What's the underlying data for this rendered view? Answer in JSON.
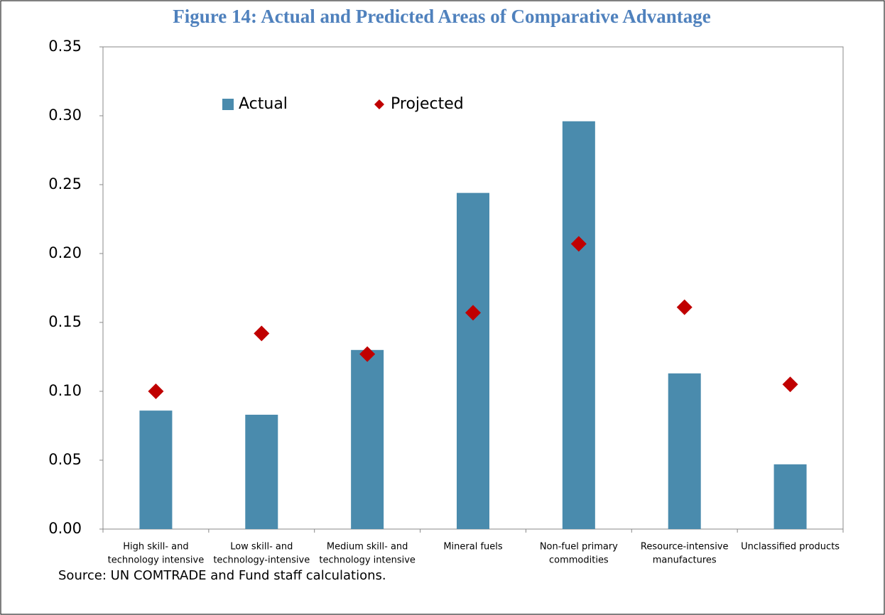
{
  "chart_data": {
    "type": "bar",
    "title": "Figure 14: Actual and Predicted Areas of Comparative Advantage",
    "categories": [
      [
        "High skill- and",
        "technology intensive"
      ],
      [
        "Low skill- and",
        "technology-intensive"
      ],
      [
        "Medium skill- and",
        "technology intensive"
      ],
      [
        "Mineral fuels"
      ],
      [
        "Non-fuel primary",
        "commodities"
      ],
      [
        "Resource-intensive",
        "manufactures"
      ],
      [
        "Unclassified products"
      ]
    ],
    "series": [
      {
        "name": "Actual",
        "type": "bar",
        "color": "#4a8bad",
        "values": [
          0.086,
          0.083,
          0.13,
          0.244,
          0.296,
          0.113,
          0.047
        ]
      },
      {
        "name": "Projected",
        "type": "scatter",
        "marker": "diamond",
        "color": "#c00000",
        "values": [
          0.1,
          0.142,
          0.127,
          0.157,
          0.207,
          0.161,
          0.105
        ]
      }
    ],
    "ylim": [
      0,
      0.35
    ],
    "yticks": [
      {
        "value": 0,
        "label": "0.00"
      },
      0.05,
      {
        "value": 0.1,
        "label": "0.10"
      },
      0.15,
      {
        "value": 0.2,
        "label": "0.20"
      },
      0.25,
      {
        "value": 0.3,
        "label": "0.30"
      },
      {
        "value": 0.35,
        "label": "0.35"
      }
    ],
    "grid": false,
    "legend": "top",
    "source": "Source: UN COMTRADE and Fund staff calculations."
  }
}
